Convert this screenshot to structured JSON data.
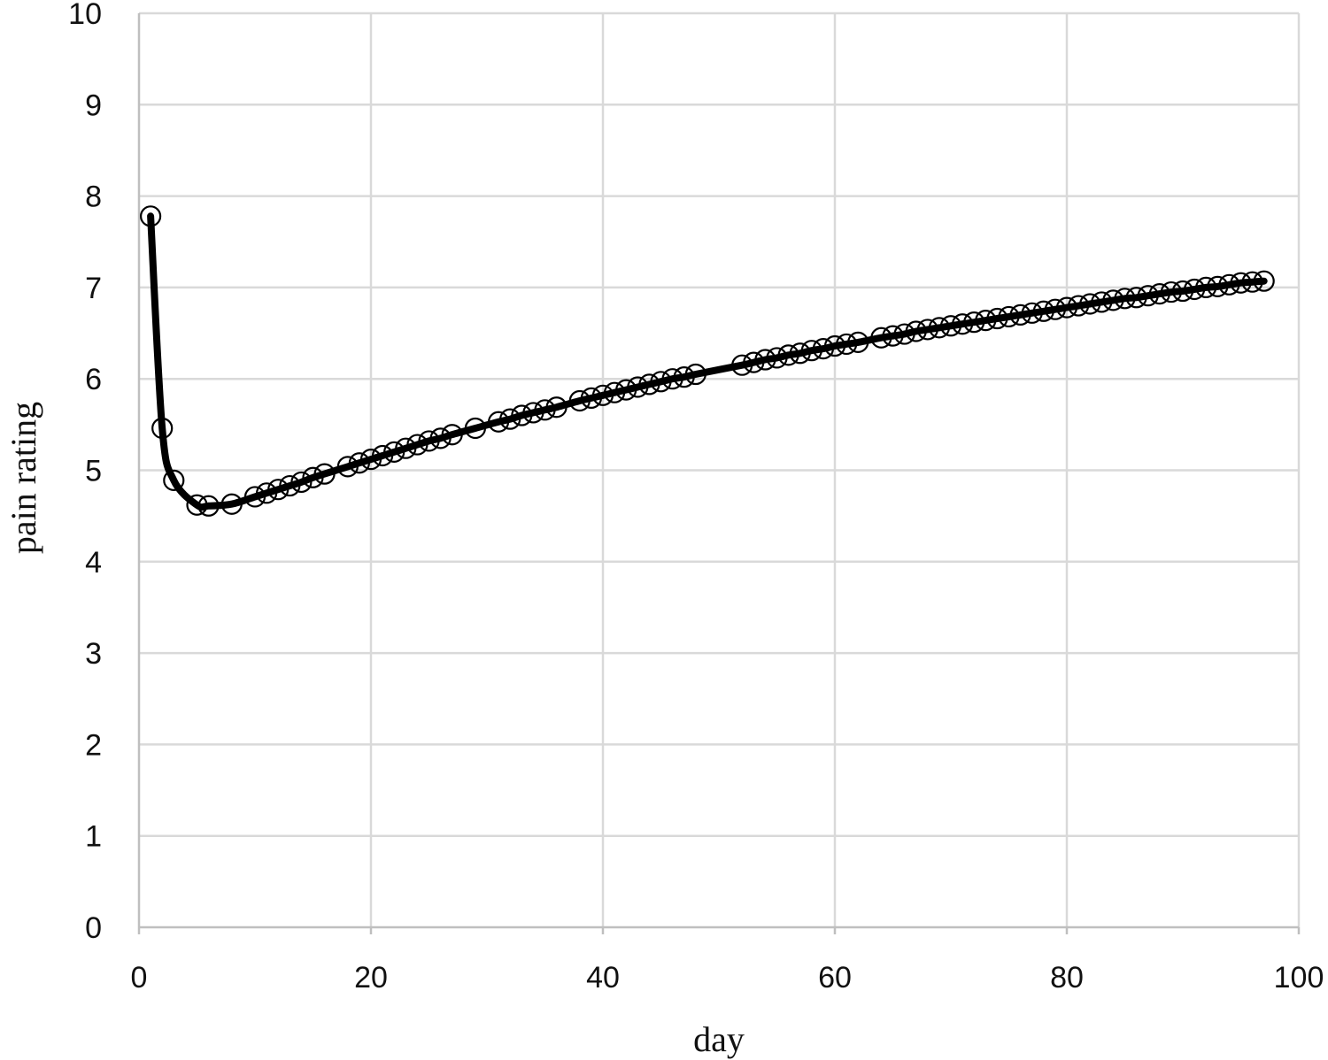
{
  "chart_data": {
    "type": "line",
    "title": "",
    "xlabel": "day",
    "ylabel": "pain rating",
    "xlim": [
      0,
      100
    ],
    "ylim": [
      0,
      10
    ],
    "x_ticks": [
      "0",
      "20",
      "40",
      "60",
      "80",
      "100"
    ],
    "y_ticks": [
      "0",
      "1",
      "2",
      "3",
      "4",
      "5",
      "6",
      "7",
      "8",
      "9",
      "10"
    ],
    "grid": true,
    "legend": "none",
    "colors": {
      "line": "#000000",
      "grid": "#d9d9d9",
      "marker": "#000000"
    },
    "series": [
      {
        "marker": "open-circle",
        "x": [
          1,
          2,
          3,
          5,
          6,
          8,
          10,
          11,
          12,
          13,
          14,
          15,
          16,
          18,
          19,
          20,
          21,
          22,
          23,
          24,
          25,
          26,
          27,
          29,
          31,
          32,
          33,
          34,
          35,
          36,
          38,
          39,
          40,
          41,
          42,
          43,
          44,
          45,
          46,
          47,
          48,
          52,
          53,
          54,
          55,
          56,
          57,
          58,
          59,
          60,
          61,
          62,
          64,
          65,
          66,
          67,
          68,
          69,
          70,
          71,
          72,
          73,
          74,
          75,
          76,
          77,
          78,
          79,
          80,
          81,
          82,
          83,
          84,
          85,
          86,
          87,
          88,
          89,
          90,
          91,
          92,
          93,
          94,
          95,
          96,
          97
        ],
        "y": [
          7.78,
          5.46,
          4.89,
          4.62,
          4.61,
          4.63,
          4.71,
          4.75,
          4.79,
          4.83,
          4.87,
          4.92,
          4.96,
          5.04,
          5.08,
          5.12,
          5.16,
          5.2,
          5.24,
          5.28,
          5.32,
          5.35,
          5.39,
          5.46,
          5.53,
          5.56,
          5.6,
          5.63,
          5.66,
          5.69,
          5.76,
          5.79,
          5.82,
          5.85,
          5.88,
          5.91,
          5.94,
          5.97,
          6.0,
          6.02,
          6.05,
          6.15,
          6.18,
          6.21,
          6.23,
          6.26,
          6.28,
          6.31,
          6.33,
          6.36,
          6.38,
          6.4,
          6.45,
          6.47,
          6.49,
          6.52,
          6.54,
          6.56,
          6.58,
          6.6,
          6.62,
          6.64,
          6.66,
          6.68,
          6.7,
          6.72,
          6.74,
          6.76,
          6.78,
          6.8,
          6.82,
          6.84,
          6.86,
          6.88,
          6.89,
          6.91,
          6.93,
          6.95,
          6.96,
          6.98,
          7.0,
          7.01,
          7.03,
          7.05,
          7.06,
          7.07
        ]
      }
    ]
  }
}
